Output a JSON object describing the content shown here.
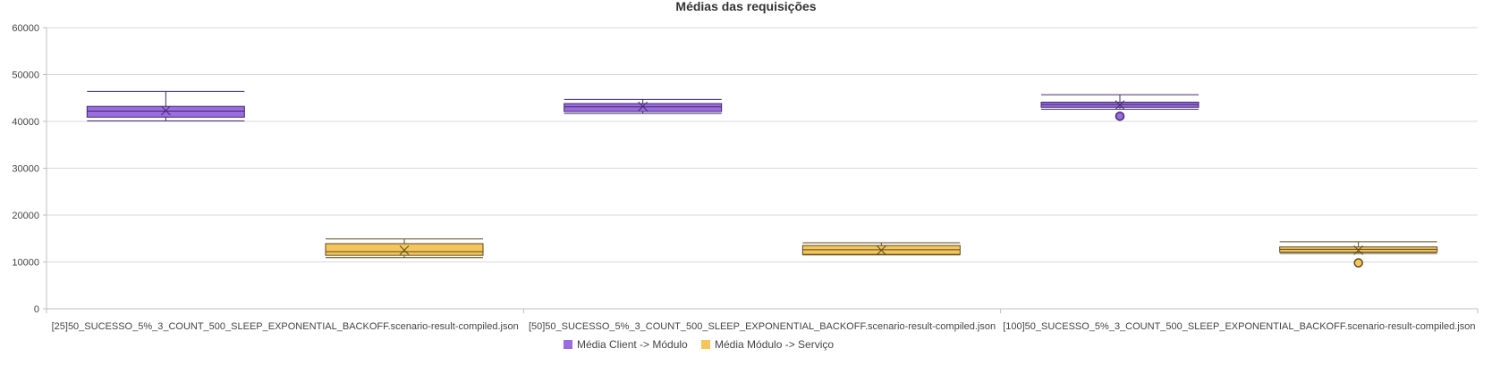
{
  "chart_data": {
    "type": "boxplot",
    "title": "Médias das requisições",
    "xlabel": "",
    "ylabel": "",
    "ylim": [
      0,
      60000
    ],
    "yticks": [
      0,
      10000,
      20000,
      30000,
      40000,
      50000,
      60000
    ],
    "grid": true,
    "legend_position": "bottom",
    "categories": [
      "[25]50_SUCESSO_5%_3_COUNT_500_SLEEP_EXPONENTIAL_BACKOFF.scenario-result-compiled.json",
      "[50]50_SUCESSO_5%_3_COUNT_500_SLEEP_EXPONENTIAL_BACKOFF.scenario-result-compiled.json",
      "[100]50_SUCESSO_5%_3_COUNT_500_SLEEP_EXPONENTIAL_BACKOFF.scenario-result-compiled.json"
    ],
    "series": [
      {
        "name": "Média Client -> Módulo",
        "color": "#9b6be0",
        "stroke": "#3f2a6b",
        "boxes": [
          {
            "min": 40100,
            "q1": 40900,
            "median": 42200,
            "q3": 43200,
            "max": 46400,
            "mean": 42300,
            "outliers": []
          },
          {
            "min": 41700,
            "q1": 42100,
            "median": 43100,
            "q3": 43800,
            "max": 44700,
            "mean": 43200,
            "outliers": []
          },
          {
            "min": 42600,
            "q1": 43000,
            "median": 43600,
            "q3": 44100,
            "max": 45700,
            "mean": 43500,
            "outliers": [
              41100
            ]
          }
        ]
      },
      {
        "name": "Média Módulo -> Serviço",
        "color": "#f5c55c",
        "stroke": "#5a4a1e",
        "boxes": [
          {
            "min": 10900,
            "q1": 11400,
            "median": 12200,
            "q3": 13900,
            "max": 14900,
            "mean": 12500,
            "outliers": []
          },
          {
            "min": 11500,
            "q1": 11600,
            "median": 12600,
            "q3": 13500,
            "max": 14100,
            "mean": 12500,
            "outliers": []
          },
          {
            "min": 11800,
            "q1": 12100,
            "median": 12700,
            "q3": 13200,
            "max": 14300,
            "mean": 12500,
            "outliers": [
              9800
            ]
          }
        ]
      }
    ]
  }
}
